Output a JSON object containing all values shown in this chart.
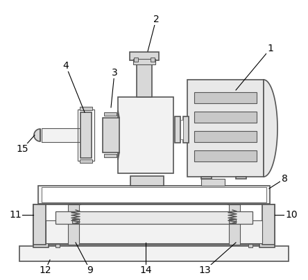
{
  "bg": "#ffffff",
  "lc": "#555555",
  "lc2": "#888888",
  "lw": 1.2,
  "gray1": "#e8e8e8",
  "gray2": "#d8d8d8",
  "gray3": "#c8c8c8",
  "gray4": "#f2f2f2",
  "white": "#ffffff",
  "label_fs": 10
}
